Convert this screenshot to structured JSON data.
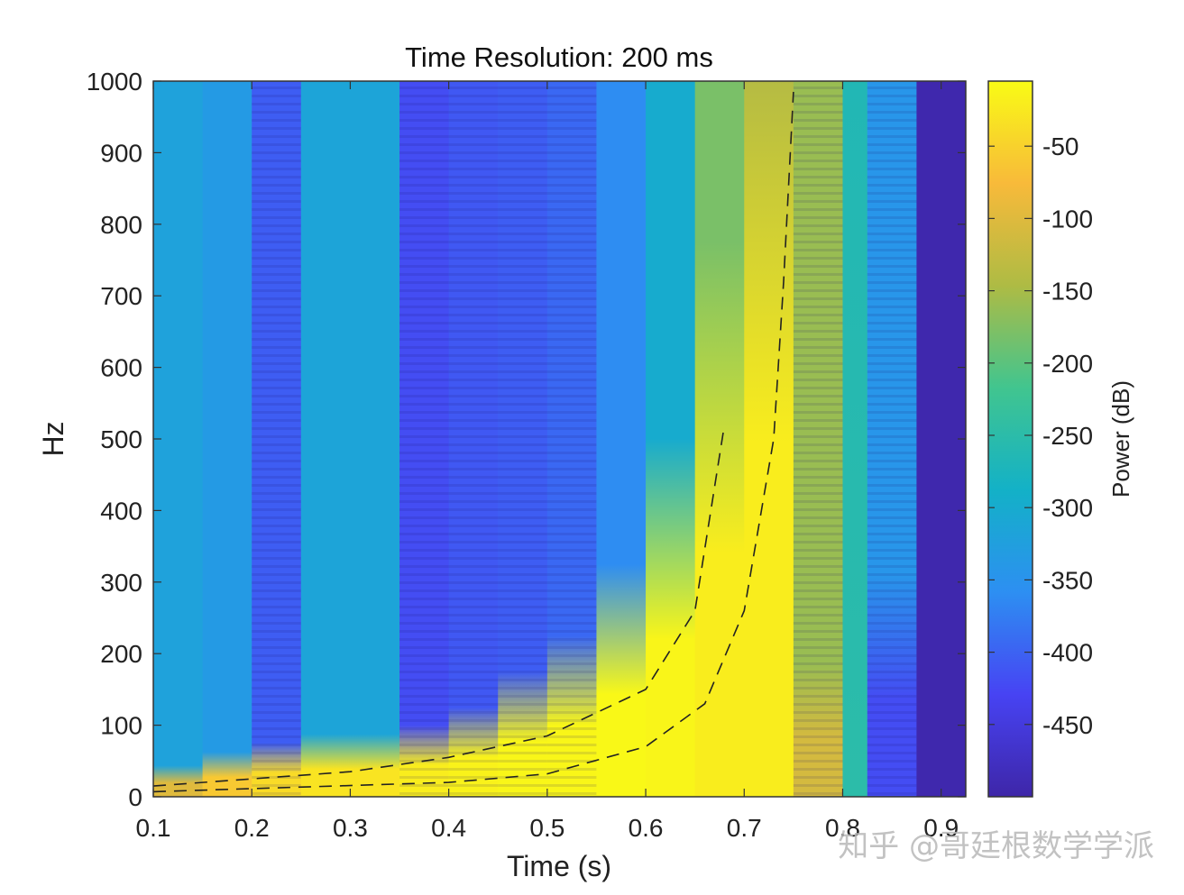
{
  "chart_data": {
    "type": "heatmap",
    "title": "Time Resolution: 200 ms",
    "xlabel": "Time (s)",
    "ylabel": "Hz",
    "xlim": [
      0.1,
      0.925
    ],
    "ylim": [
      0,
      1000
    ],
    "x_ticks": [
      0.1,
      0.2,
      0.3,
      0.4,
      0.5,
      0.6,
      0.7,
      0.8,
      0.9
    ],
    "x_tick_labels": [
      "0.1",
      "0.2",
      "0.3",
      "0.4",
      "0.5",
      "0.6",
      "0.7",
      "0.8",
      "0.9"
    ],
    "y_ticks": [
      0,
      100,
      200,
      300,
      400,
      500,
      600,
      700,
      800,
      900,
      1000
    ],
    "y_tick_labels": [
      "0",
      "100",
      "200",
      "300",
      "400",
      "500",
      "600",
      "700",
      "800",
      "900",
      "1000"
    ],
    "colorbar": {
      "label": "Power (dB)",
      "range": [
        -500,
        -5
      ],
      "ticks": [
        -50,
        -100,
        -150,
        -200,
        -250,
        -300,
        -350,
        -400,
        -450
      ],
      "tick_labels": [
        "-50",
        "-100",
        "-150",
        "-200",
        "-250",
        "-300",
        "-350",
        "-400",
        "-450"
      ],
      "colormap": [
        "#3e26a8",
        "#4743f3",
        "#2d8ff2",
        "#13b1c7",
        "#41c58f",
        "#aebb44",
        "#f8ba3a",
        "#f9fb15"
      ]
    },
    "columns": [
      {
        "t0": 0.1,
        "t1": 0.15,
        "low": {
          "edge": 35,
          "power": -100
        },
        "high": -320,
        "stripe": false
      },
      {
        "t0": 0.15,
        "t1": 0.2,
        "low": {
          "edge": 50,
          "power": -60
        },
        "high": -335,
        "stripe": false
      },
      {
        "t0": 0.2,
        "t1": 0.25,
        "low": {
          "edge": 60,
          "power": -40
        },
        "high": -405,
        "stripe": true
      },
      {
        "t0": 0.25,
        "t1": 0.35,
        "low": {
          "edge": 70,
          "power": -30
        },
        "high": -315,
        "stripe": false
      },
      {
        "t0": 0.35,
        "t1": 0.4,
        "low": {
          "edge": 80,
          "power": -20
        },
        "high": -420,
        "stripe": true
      },
      {
        "t0": 0.4,
        "t1": 0.45,
        "low": {
          "edge": 100,
          "power": -15
        },
        "high": -410,
        "stripe": true
      },
      {
        "t0": 0.45,
        "t1": 0.5,
        "low": {
          "edge": 140,
          "power": -10
        },
        "high": -405,
        "stripe": true
      },
      {
        "t0": 0.5,
        "t1": 0.55,
        "low": {
          "edge": 180,
          "power": -10
        },
        "high": -395,
        "stripe": true
      },
      {
        "t0": 0.55,
        "t1": 0.6,
        "low": {
          "edge": 260,
          "power": -8
        },
        "high": -360,
        "stripe": false
      },
      {
        "t0": 0.6,
        "t1": 0.65,
        "low": {
          "edge": 400,
          "power": -12
        },
        "high": -300,
        "stripe": false
      },
      {
        "t0": 0.65,
        "t1": 0.7,
        "low": {
          "edge": 620,
          "power": -20
        },
        "high": -180,
        "stripe": false
      },
      {
        "t0": 0.7,
        "t1": 0.75,
        "low": {
          "edge": 900,
          "power": -20
        },
        "high": -140,
        "stripe": false
      },
      {
        "t0": 0.75,
        "t1": 0.8,
        "low": {
          "edge": 150,
          "power": -110
        },
        "high": -160,
        "stripe": true
      },
      {
        "t0": 0.8,
        "t1": 0.825,
        "low": {
          "edge": 0,
          "power": -250
        },
        "high": -265,
        "stripe": false
      },
      {
        "t0": 0.825,
        "t1": 0.875,
        "low": {
          "edge": 250,
          "power": -420
        },
        "high": -345,
        "stripe": true
      },
      {
        "t0": 0.875,
        "t1": 0.925,
        "low": {
          "edge": 0,
          "power": -495
        },
        "high": -495,
        "stripe": false
      }
    ],
    "annotations": {
      "type": "dashed-curves",
      "description": "instantaneous frequency of two chirp components",
      "curve_1": {
        "t": [
          0.1,
          0.3,
          0.4,
          0.5,
          0.6,
          0.65,
          0.68
        ],
        "hz": [
          15,
          35,
          55,
          85,
          150,
          260,
          520
        ]
      },
      "curve_2": {
        "t": [
          0.1,
          0.4,
          0.5,
          0.6,
          0.66,
          0.7,
          0.73,
          0.74,
          0.75
        ],
        "hz": [
          7,
          20,
          32,
          70,
          130,
          260,
          500,
          720,
          985
        ]
      }
    }
  },
  "watermark": "知乎 @哥廷根数学学派"
}
